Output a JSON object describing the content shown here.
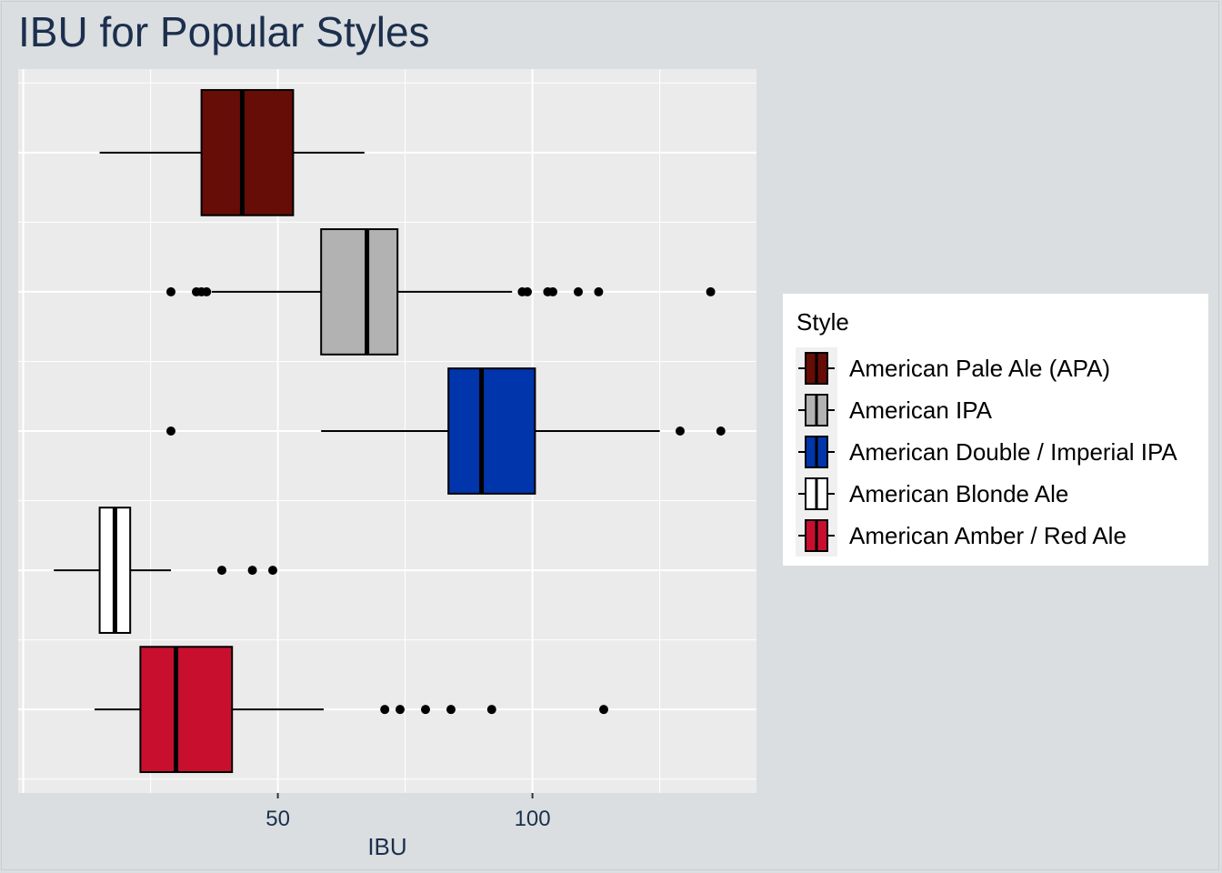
{
  "chart_data": {
    "type": "boxplot",
    "title": "IBU for Popular Styles",
    "xlabel": "IBU",
    "ylabel": "",
    "xlim": [
      -1,
      144
    ],
    "x_ticks": [
      50,
      100
    ],
    "grid": true,
    "legend_title": "Style",
    "legend_position": "right",
    "series": [
      {
        "name": "American Pale Ale (APA)",
        "color": "#650d06",
        "whisker_low": 15,
        "q1": 35,
        "median": 43,
        "q3": 53,
        "whisker_high": 67,
        "outliers": []
      },
      {
        "name": "American IPA",
        "color": "#b1b2b1",
        "whisker_low": 37,
        "q1": 58.5,
        "median": 67.5,
        "q3": 73.5,
        "whisker_high": 96,
        "outliers": [
          29,
          34,
          35,
          36,
          98,
          99,
          103,
          104,
          109,
          113,
          135
        ]
      },
      {
        "name": "American Double / Imperial IPA",
        "color": "#0035ab",
        "whisker_low": 58.5,
        "q1": 83.5,
        "median": 90,
        "q3": 100.5,
        "whisker_high": 125,
        "outliers": [
          29,
          129,
          137
        ]
      },
      {
        "name": "American Blonde Ale",
        "color": "#ffffff",
        "whisker_low": 6,
        "q1": 15,
        "median": 18,
        "q3": 21,
        "whisker_high": 29,
        "outliers": [
          39,
          45,
          49
        ]
      },
      {
        "name": "American Amber / Red Ale",
        "color": "#c8102e",
        "whisker_low": 14,
        "q1": 23,
        "median": 30,
        "q3": 41,
        "whisker_high": 59,
        "outliers": [
          71,
          74,
          79,
          84,
          92,
          114
        ]
      }
    ]
  }
}
